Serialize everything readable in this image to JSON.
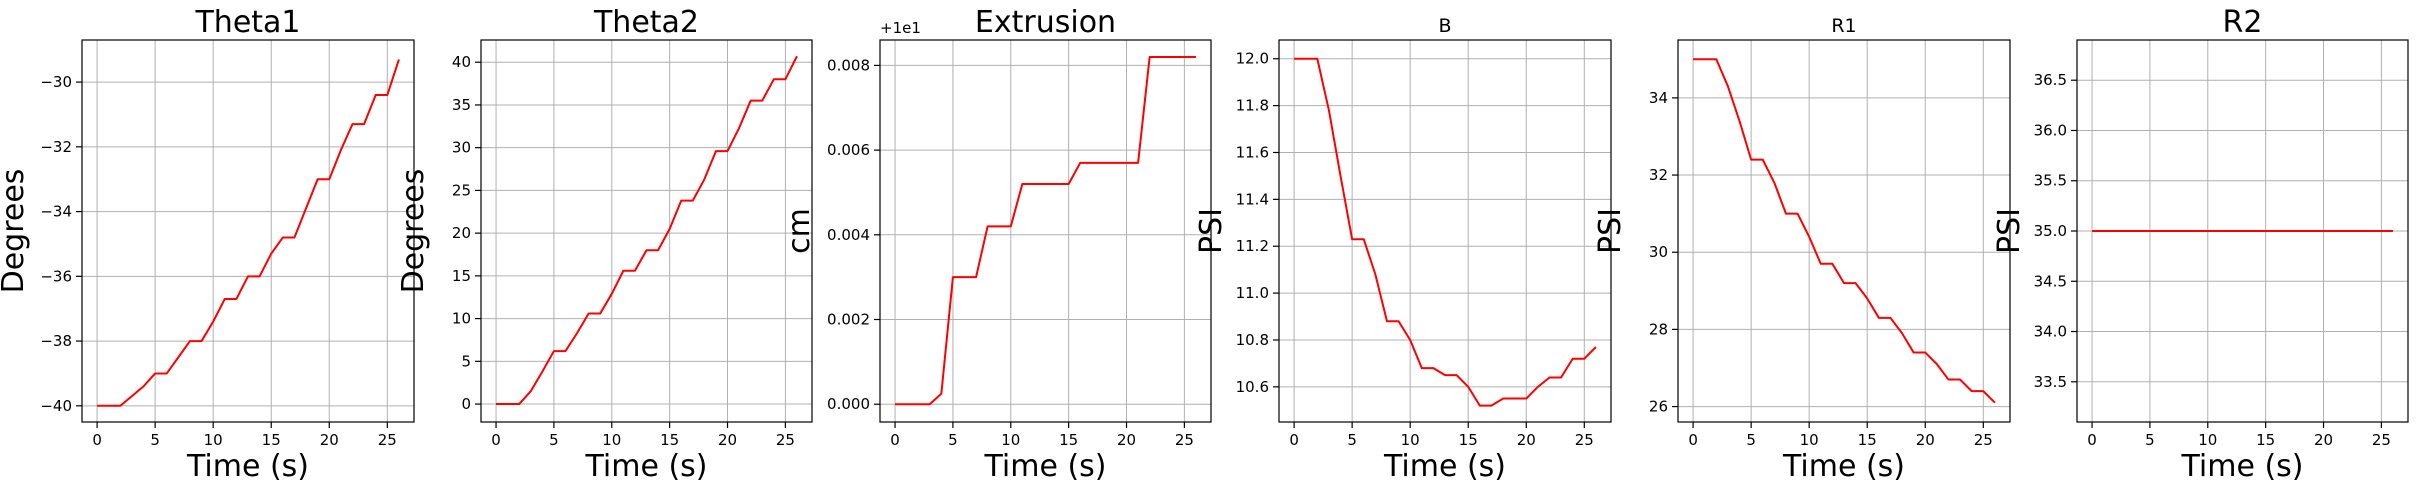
{
  "style": {
    "line_color": "#ff0000",
    "grid_color": "#b0b0b0"
  },
  "chart_data": [
    {
      "type": "line",
      "title": "Theta1",
      "title_size": "large",
      "xlabel": "Time (s)",
      "ylabel": "Degrees",
      "xlim": [
        -1.3,
        27.3
      ],
      "ylim": [
        -40.5,
        -28.7
      ],
      "xticks": [
        0,
        5,
        10,
        15,
        20,
        25
      ],
      "yticks": [
        -40,
        -38,
        -36,
        -34,
        -32,
        -30
      ],
      "ytick_labels": [
        "−40",
        "−38",
        "−36",
        "−34",
        "−32",
        "−30"
      ],
      "offset_label": "",
      "grid": true,
      "series": [
        {
          "x": [
            0,
            1,
            2,
            3,
            4,
            5,
            6,
            7,
            8,
            9,
            10,
            11,
            12,
            13,
            14,
            15,
            16,
            17,
            18,
            19,
            20,
            21,
            22,
            23,
            24,
            25,
            26
          ],
          "y": [
            -40.0,
            -40.0,
            -40.0,
            -39.7,
            -39.4,
            -39.0,
            -39.0,
            -38.5,
            -38.0,
            -38.0,
            -37.4,
            -36.7,
            -36.7,
            -36.0,
            -36.0,
            -35.3,
            -34.8,
            -34.8,
            -33.9,
            -33.0,
            -33.0,
            -32.1,
            -31.3,
            -31.3,
            -30.4,
            -30.4,
            -29.3
          ]
        }
      ]
    },
    {
      "type": "line",
      "title": "Theta2",
      "title_size": "large",
      "xlabel": "Time (s)",
      "ylabel": "Degrees",
      "xlim": [
        -1.3,
        27.3
      ],
      "ylim": [
        -2.1,
        42.6
      ],
      "xticks": [
        0,
        5,
        10,
        15,
        20,
        25
      ],
      "yticks": [
        0,
        5,
        10,
        15,
        20,
        25,
        30,
        35,
        40
      ],
      "ytick_labels": [
        "0",
        "5",
        "10",
        "15",
        "20",
        "25",
        "30",
        "35",
        "40"
      ],
      "offset_label": "",
      "grid": true,
      "series": [
        {
          "x": [
            0,
            1,
            2,
            3,
            4,
            5,
            6,
            7,
            8,
            9,
            10,
            11,
            12,
            13,
            14,
            15,
            16,
            17,
            18,
            19,
            20,
            21,
            22,
            23,
            24,
            25,
            26
          ],
          "y": [
            0.0,
            0.0,
            0.0,
            1.5,
            3.8,
            6.2,
            6.2,
            8.3,
            10.6,
            10.6,
            12.9,
            15.6,
            15.6,
            18.0,
            18.0,
            20.5,
            23.8,
            23.8,
            26.3,
            29.6,
            29.6,
            32.3,
            35.5,
            35.5,
            38.0,
            38.0,
            40.7
          ]
        }
      ]
    },
    {
      "type": "line",
      "title": "Extrusion",
      "title_size": "large",
      "xlabel": "Time (s)",
      "ylabel": "cm",
      "xlim": [
        -1.3,
        27.3
      ],
      "ylim": [
        -0.00042,
        0.0086
      ],
      "xticks": [
        0,
        5,
        10,
        15,
        20,
        25
      ],
      "yticks": [
        0.0,
        0.002,
        0.004,
        0.006,
        0.008
      ],
      "ytick_labels": [
        "0.000",
        "0.002",
        "0.004",
        "0.006",
        "0.008"
      ],
      "offset_label": "+1e1",
      "grid": true,
      "series": [
        {
          "x": [
            0,
            1,
            2,
            3,
            4,
            5,
            6,
            7,
            8,
            9,
            10,
            11,
            12,
            13,
            14,
            15,
            16,
            17,
            18,
            19,
            20,
            21,
            22,
            23,
            24,
            25,
            26
          ],
          "y": [
            0.0,
            0.0,
            0.0,
            0.0,
            0.00025,
            0.003,
            0.003,
            0.003,
            0.0042,
            0.0042,
            0.0042,
            0.0052,
            0.0052,
            0.0052,
            0.0052,
            0.0052,
            0.0057,
            0.0057,
            0.0057,
            0.0057,
            0.0057,
            0.0057,
            0.0082,
            0.0082,
            0.0082,
            0.0082,
            0.0082
          ]
        }
      ]
    },
    {
      "type": "line",
      "title": "B",
      "title_size": "small",
      "xlabel": "Time (s)",
      "ylabel": "PSI",
      "xlim": [
        -1.3,
        27.3
      ],
      "ylim": [
        10.45,
        12.08
      ],
      "xticks": [
        0,
        5,
        10,
        15,
        20,
        25
      ],
      "yticks": [
        10.6,
        10.8,
        11.0,
        11.2,
        11.4,
        11.6,
        11.8,
        12.0
      ],
      "ytick_labels": [
        "10.6",
        "10.8",
        "11.0",
        "11.2",
        "11.4",
        "11.6",
        "11.8",
        "12.0"
      ],
      "offset_label": "",
      "grid": true,
      "series": [
        {
          "x": [
            0,
            1,
            2,
            3,
            4,
            5,
            6,
            7,
            8,
            9,
            10,
            11,
            12,
            13,
            14,
            15,
            16,
            17,
            18,
            19,
            20,
            21,
            22,
            23,
            24,
            25,
            26
          ],
          "y": [
            12.0,
            12.0,
            12.0,
            11.78,
            11.5,
            11.23,
            11.23,
            11.08,
            10.88,
            10.88,
            10.8,
            10.68,
            10.68,
            10.65,
            10.65,
            10.6,
            10.52,
            10.52,
            10.55,
            10.55,
            10.55,
            10.6,
            10.64,
            10.64,
            10.72,
            10.72,
            10.77
          ]
        }
      ]
    },
    {
      "type": "line",
      "title": "R1",
      "title_size": "small",
      "xlabel": "Time (s)",
      "ylabel": "PSI",
      "xlim": [
        -1.3,
        27.3
      ],
      "ylim": [
        25.6,
        35.5
      ],
      "xticks": [
        0,
        5,
        10,
        15,
        20,
        25
      ],
      "yticks": [
        26,
        28,
        30,
        32,
        34
      ],
      "ytick_labels": [
        "26",
        "28",
        "30",
        "32",
        "34"
      ],
      "offset_label": "",
      "grid": true,
      "series": [
        {
          "x": [
            0,
            1,
            2,
            3,
            4,
            5,
            6,
            7,
            8,
            9,
            10,
            11,
            12,
            13,
            14,
            15,
            16,
            17,
            18,
            19,
            20,
            21,
            22,
            23,
            24,
            25,
            26
          ],
          "y": [
            35.0,
            35.0,
            35.0,
            34.3,
            33.4,
            32.4,
            32.4,
            31.8,
            31.0,
            31.0,
            30.4,
            29.7,
            29.7,
            29.2,
            29.2,
            28.8,
            28.3,
            28.3,
            27.9,
            27.4,
            27.4,
            27.1,
            26.7,
            26.7,
            26.4,
            26.4,
            26.1
          ]
        }
      ]
    },
    {
      "type": "line",
      "title": "R2",
      "title_size": "large",
      "xlabel": "Time (s)",
      "ylabel": "PSI",
      "xlim": [
        -1.3,
        27.3
      ],
      "ylim": [
        33.1,
        36.9
      ],
      "xticks": [
        0,
        5,
        10,
        15,
        20,
        25
      ],
      "yticks": [
        33.5,
        34.0,
        34.5,
        35.0,
        35.5,
        36.0,
        36.5
      ],
      "ytick_labels": [
        "33.5",
        "34.0",
        "34.5",
        "35.0",
        "35.5",
        "36.0",
        "36.5"
      ],
      "offset_label": "",
      "grid": true,
      "series": [
        {
          "x": [
            0,
            26
          ],
          "y": [
            35.0,
            35.0
          ]
        }
      ]
    }
  ]
}
